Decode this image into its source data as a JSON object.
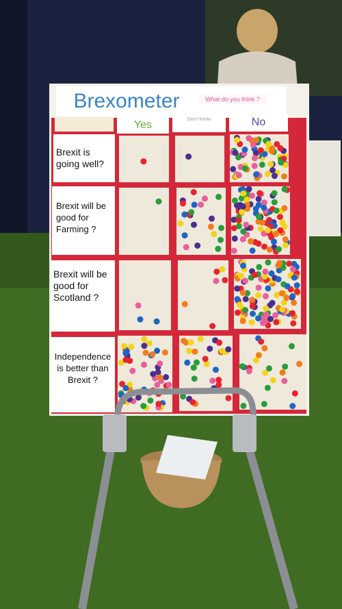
{
  "board": {
    "title": "Brexometer",
    "subtitle": "What do you think ?",
    "columns": [
      "Yes",
      "Don't know",
      "No"
    ],
    "questions": [
      {
        "label": "Brexit is going well?"
      },
      {
        "label": "Brexit will be good for Farming ?"
      },
      {
        "label": "Brexit will be good for Scotland ?"
      },
      {
        "label": "Independence is better than Brexit ?"
      }
    ]
  },
  "colors": {
    "grid_red": "#d4283a",
    "board_cream": "#efe9dc",
    "title_blue": "#3b84c8",
    "subtitle_pink": "#e05a8c",
    "header_green": "#5fae3c",
    "dots": [
      "#e8232e",
      "#f2d31b",
      "#2a9d3c",
      "#4a2f8f",
      "#e8609b",
      "#1f66c2",
      "#f07d1c"
    ]
  }
}
